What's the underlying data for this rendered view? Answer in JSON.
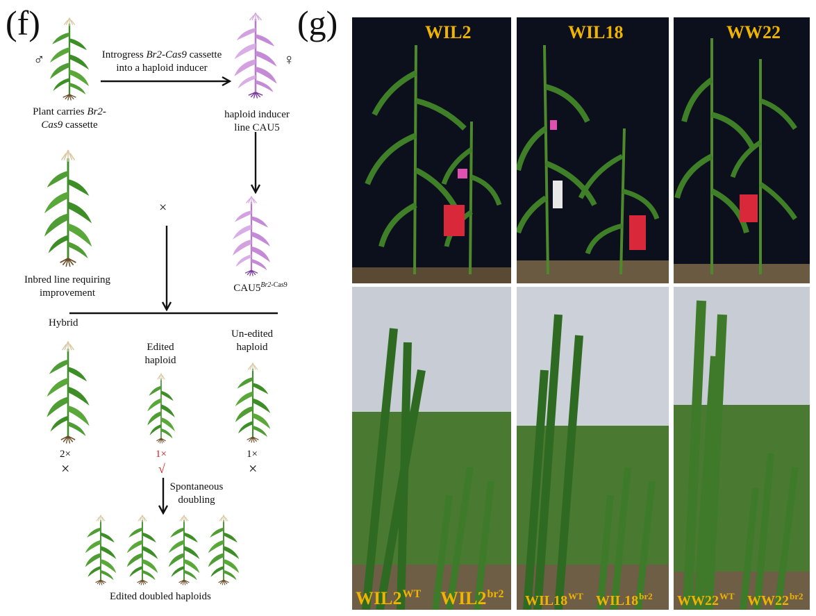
{
  "panel_f": {
    "letter": "(f)",
    "male_symbol": "♂",
    "female_symbol": "♀",
    "introgress": {
      "line1_a": "Introgress ",
      "line1_italic": "Br2-Cas9",
      "line1_b": " cassette",
      "line2": "into a haploid inducer"
    },
    "carrier": {
      "line1_a": "Plant carries ",
      "line1_italic": "Br2-",
      "line2_italic": "Cas9",
      "line2_b": "  cassette"
    },
    "inducer": {
      "line1": "haploid inducer",
      "line2": "line CAU5"
    },
    "cross_symbol": "×",
    "inbred": {
      "line1": "Inbred line requiring",
      "line2": "improvement"
    },
    "cau5_edit": {
      "base": "CAU5",
      "sup_italic": "Br2",
      "sup_rest": "-Cas9"
    },
    "hybrid": "Hybrid",
    "edited": {
      "line1": "Edited",
      "line2": "haploid"
    },
    "unedited": {
      "line1": "Un-edited",
      "line2": "haploid"
    },
    "hybrid_ploidy": "2×",
    "edited_ploidy": "1×",
    "unedited_ploidy": "1×",
    "reject_mark": "×",
    "accept_mark": "√",
    "doubling": {
      "line1": "Spontaneous",
      "line2": "doubling"
    },
    "final": "Edited doubled haploids"
  },
  "panel_g": {
    "letter": "(g)",
    "top_labels": [
      "WIL2",
      "WIL18",
      "WW22"
    ],
    "bottom_labels": [
      {
        "left": "WIL2",
        "left_sup": "WT",
        "right": "WIL2",
        "right_sup": "br2"
      },
      {
        "left": "WIL18",
        "left_sup": "WT",
        "right": "WIL18",
        "right_sup": "br2"
      },
      {
        "left": "WW22",
        "left_sup": "WT",
        "right": "WW22",
        "right_sup": "br2"
      }
    ]
  },
  "colors": {
    "label_gold": "#f0b400",
    "accent_red": "#d42020",
    "plant_green": "#3e8e28",
    "inducer_purple": "#c48ad6"
  }
}
